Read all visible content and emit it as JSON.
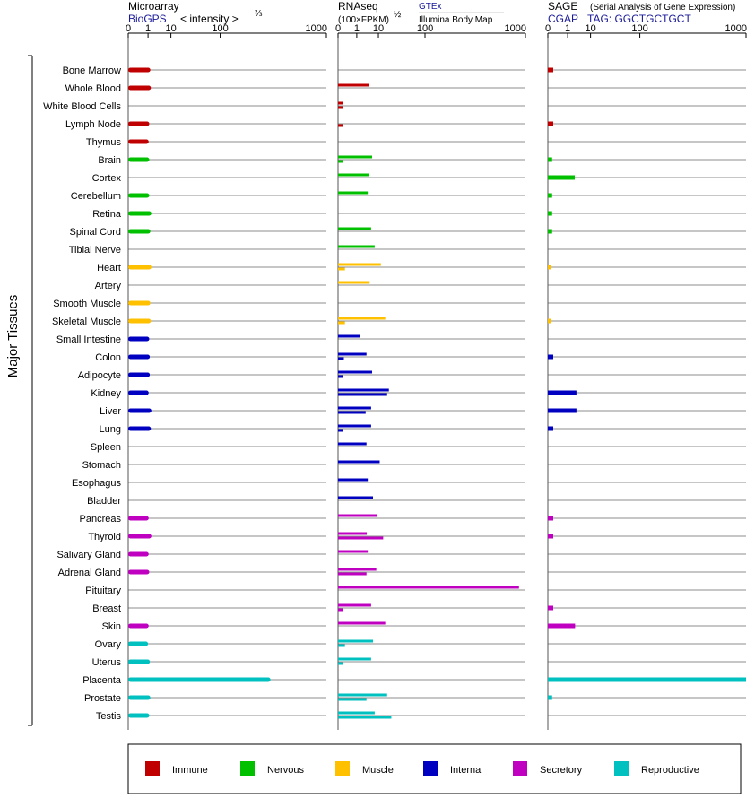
{
  "chart_data": {
    "type": "bar",
    "orientation": "horizontal",
    "group_label": "Major Tissues",
    "categories": [
      "Bone Marrow",
      "Whole Blood",
      "White Blood Cells",
      "Lymph Node",
      "Thymus",
      "Brain",
      "Cortex",
      "Cerebellum",
      "Retina",
      "Spinal Cord",
      "Tibial Nerve",
      "Heart",
      "Artery",
      "Smooth Muscle",
      "Skeletal Muscle",
      "Small Intestine",
      "Colon",
      "Adipocyte",
      "Kidney",
      "Liver",
      "Lung",
      "Spleen",
      "Stomach",
      "Esophagus",
      "Bladder",
      "Pancreas",
      "Thyroid",
      "Salivary Gland",
      "Adrenal Gland",
      "Pituitary",
      "Breast",
      "Skin",
      "Ovary",
      "Uterus",
      "Placenta",
      "Prostate",
      "Testis"
    ],
    "category_groups": [
      "immune",
      "immune",
      "immune",
      "immune",
      "immune",
      "nervous",
      "nervous",
      "nervous",
      "nervous",
      "nervous",
      "nervous",
      "muscle",
      "muscle",
      "muscle",
      "muscle",
      "internal",
      "internal",
      "internal",
      "internal",
      "internal",
      "internal",
      "internal",
      "internal",
      "internal",
      "internal",
      "secretory",
      "secretory",
      "secretory",
      "secretory",
      "secretory",
      "secretory",
      "secretory",
      "reproductive",
      "reproductive",
      "reproductive",
      "reproductive",
      "reproductive"
    ],
    "axis_ticks": [
      "0",
      "1",
      "10",
      "100",
      "1000"
    ],
    "axis_tick_values": [
      0,
      1,
      10,
      100,
      1000
    ],
    "x_scale": "power 1/3",
    "xlim": [
      0,
      1000
    ],
    "panels": [
      {
        "id": "microarray",
        "title": "Microarray",
        "source": "BioGPS",
        "unit": "< intensity >",
        "unit_superscript": "⅔",
        "series": [
          {
            "name": "",
            "values": [
              1.4,
              1.5,
              0,
              1.2,
              1.1,
              1.2,
              0,
              1.2,
              1.6,
              1.4,
              0,
              1.6,
              0,
              1.4,
              1.5,
              1.2,
              1.3,
              1.3,
              1.1,
              1.6,
              1.5,
              0,
              0,
              0,
              0,
              1.1,
              1.6,
              1.1,
              1.2,
              0,
              0,
              1.1,
              1.0,
              1.3,
              370,
              1.4,
              1.2
            ]
          }
        ]
      },
      {
        "id": "rnaseq",
        "title": "RNAseq",
        "unit": "(100×FPKM)",
        "unit_superscript": "½",
        "sources": [
          "GTEx",
          "Illumina Body Map"
        ],
        "series": [
          {
            "name": "GTEx",
            "values": [
              0,
              4.5,
              0.02,
              0,
              0,
              6,
              4.5,
              4,
              0,
              5.5,
              7.5,
              12,
              4.8,
              0,
              16,
              1.6,
              3.5,
              6,
              20,
              5.5,
              5.5,
              3.5,
              11,
              4,
              6.5,
              9,
              3.6,
              4,
              8.5,
              900,
              5.5,
              16,
              6.5,
              5.5,
              0,
              18,
              7.5
            ]
          },
          {
            "name": "Illumina Body Map",
            "values": [
              0,
              0,
              0.02,
              0.02,
              0,
              0.02,
              0,
              0,
              0,
              0,
              0,
              0.05,
              0,
              0,
              0.05,
              0,
              0.03,
              0.02,
              18,
              3.2,
              0.02,
              0,
              0,
              0,
              0,
              0,
              14,
              0,
              3.5,
              0,
              0.02,
              0,
              0.05,
              0.02,
              0,
              3.5,
              23
            ]
          }
        ]
      },
      {
        "id": "sage",
        "title": "SAGE",
        "subtitle": "(Serial Analysis of Gene Expression)",
        "source": "CGAP",
        "tag": "TAG: GGCTGCTGCT",
        "series": [
          {
            "name": "",
            "values": [
              0.02,
              0,
              0,
              0.02,
              0,
              0.01,
              2.5,
              0.01,
              0.01,
              0.01,
              0,
              0.005,
              0,
              0,
              0.005,
              0,
              0.02,
              0,
              3,
              3,
              0.02,
              0,
              0,
              0,
              0,
              0.02,
              0.02,
              0,
              0,
              0,
              0.02,
              2.6,
              0,
              0,
              1000,
              0.01,
              0
            ]
          }
        ]
      }
    ],
    "legend": {
      "placement": "bottom",
      "items": [
        {
          "key": "immune",
          "label": "Immune",
          "color": "#c00000"
        },
        {
          "key": "nervous",
          "label": "Nervous",
          "color": "#00c000"
        },
        {
          "key": "muscle",
          "label": "Muscle",
          "color": "#ffc000"
        },
        {
          "key": "internal",
          "label": "Internal",
          "color": "#0000c0"
        },
        {
          "key": "secretory",
          "label": "Secretory",
          "color": "#c000c0"
        },
        {
          "key": "reproductive",
          "label": "Reproductive",
          "color": "#00c0c0"
        }
      ]
    }
  }
}
